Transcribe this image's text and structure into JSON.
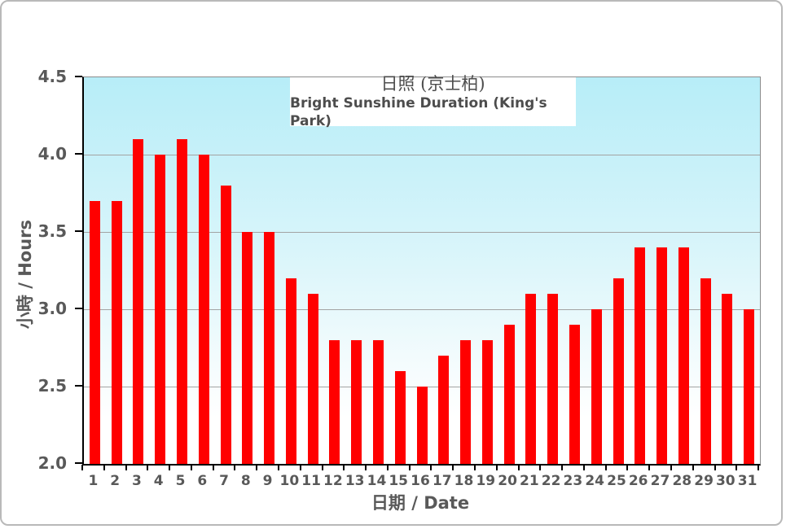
{
  "chart_data": {
    "type": "bar",
    "title": "日照 (京士柏)",
    "subtitle": "Bright Sunshine Duration (King's Park)",
    "xlabel": "日期 / Date",
    "ylabel": "小時 / Hours",
    "ylim": [
      2.0,
      4.5
    ],
    "ytick_step": 0.5,
    "yticks": [
      "4.5",
      "4.0",
      "3.5",
      "3.0",
      "2.5",
      "2.0"
    ],
    "grid": true,
    "legend_position": "none",
    "categories": [
      1,
      2,
      3,
      4,
      5,
      6,
      7,
      8,
      9,
      10,
      11,
      12,
      13,
      14,
      15,
      16,
      17,
      18,
      19,
      20,
      21,
      22,
      23,
      24,
      25,
      26,
      27,
      28,
      29,
      30,
      31
    ],
    "values": [
      3.7,
      3.7,
      4.1,
      4.0,
      4.1,
      4.0,
      3.8,
      3.5,
      3.5,
      3.2,
      3.1,
      2.8,
      2.8,
      2.8,
      2.6,
      2.5,
      2.7,
      2.8,
      2.8,
      2.9,
      3.1,
      3.1,
      2.9,
      3.0,
      3.2,
      3.4,
      3.4,
      3.4,
      3.2,
      3.1,
      3.0
    ],
    "colors": {
      "bar": "#ff0000",
      "plot_bg_top": "#b7edf8",
      "plot_bg_bottom": "#ffffff",
      "gridline": "#a3a3a3",
      "axis": "#000000",
      "label_text": "#595959",
      "title_text": "#4d4d4d",
      "frame_border": "#b9b9b9"
    }
  }
}
